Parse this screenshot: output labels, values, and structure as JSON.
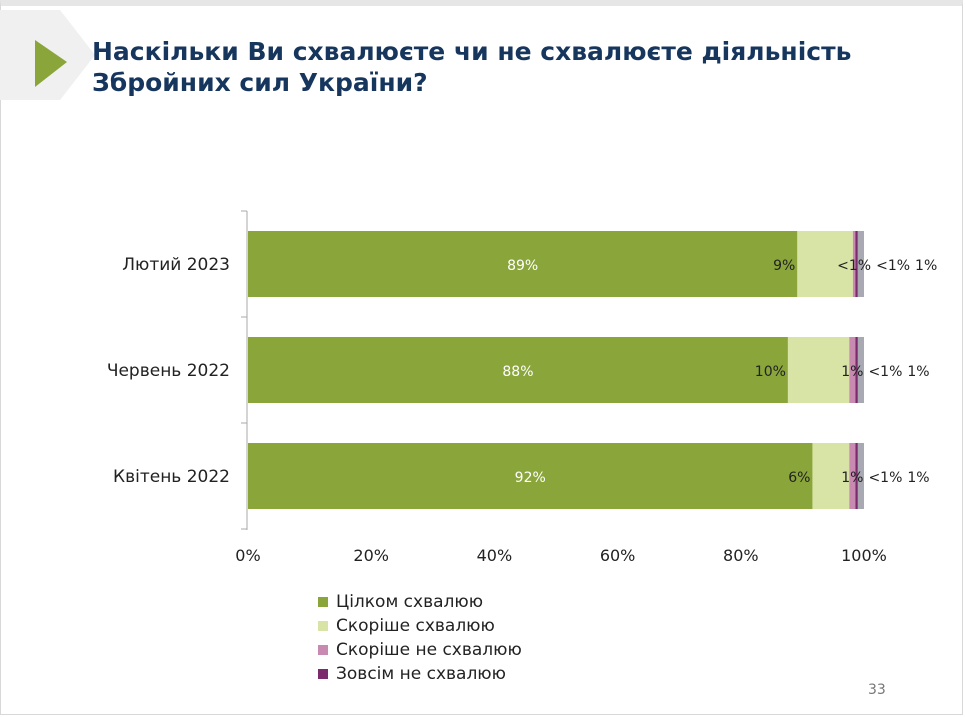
{
  "title_line1": "Наскільки Ви схвалюєте чи не схвалюєте діяльність",
  "title_line2": "Збройних сил України?",
  "page_number": "33",
  "colors": {
    "accent": "#8aa53a",
    "title": "#17365d"
  },
  "chart_data": {
    "type": "bar",
    "orientation": "horizontal-stacked-100",
    "categories": [
      "Лютий 2023",
      "Червень 2022",
      "Квітень 2022"
    ],
    "series": [
      {
        "name": "Цілком схвалюю",
        "color": "#8aa53a",
        "values": [
          89,
          88,
          92
        ],
        "labels": [
          "89%",
          "88%",
          "92%"
        ],
        "label_color": "#ffffff"
      },
      {
        "name": "Скоріше схвалюю",
        "color": "#d7e4a6",
        "values": [
          9,
          10,
          6
        ],
        "labels": [
          "9%",
          "10%",
          "6%"
        ],
        "label_color": "#222222"
      },
      {
        "name": "Скоріше не схвалюю",
        "color": "#c88ab0",
        "values": [
          0.4,
          1,
          1
        ],
        "labels": [
          "<1%",
          "1%",
          "1%"
        ],
        "label_color": "#222222"
      },
      {
        "name": "Зовсім не схвалюю",
        "color": "#7b2a6b",
        "values": [
          0.4,
          0.4,
          0.4
        ],
        "labels": [
          "<1%",
          "<1%",
          "<1%"
        ],
        "label_color": "#222222"
      },
      {
        "name": "",
        "color": "#a9a9b3",
        "values": [
          1,
          1,
          1
        ],
        "labels": [
          "1%",
          "1%",
          "1%"
        ],
        "label_color": "#222222"
      }
    ],
    "xticks": [
      "0%",
      "20%",
      "40%",
      "60%",
      "80%",
      "100%"
    ],
    "xlim": [
      0,
      100
    ],
    "grid": false,
    "legend_position": "bottom-left"
  }
}
